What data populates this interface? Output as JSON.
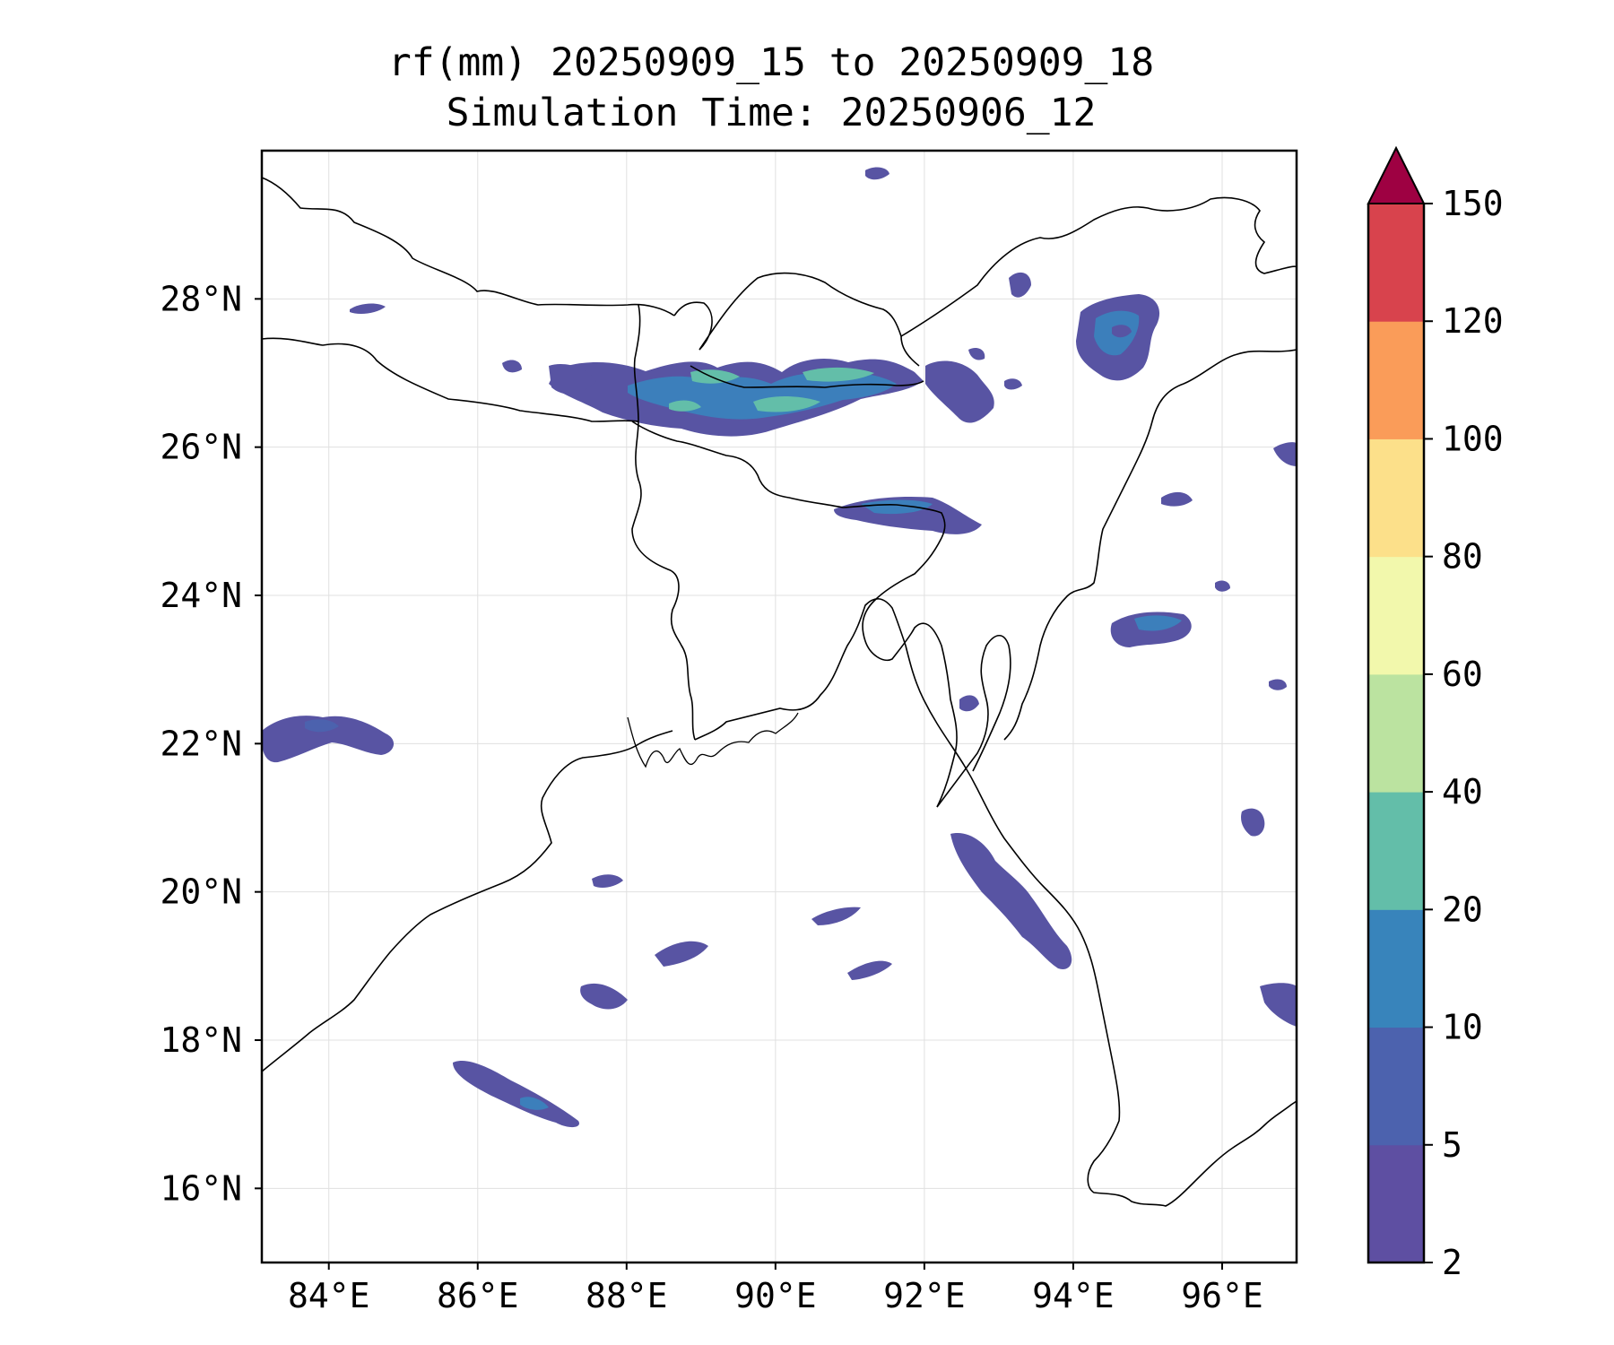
{
  "title": {
    "line1": "rf(mm) 20250909_15 to 20250909_18",
    "line2": "Simulation Time: 20250906_12"
  },
  "map": {
    "lat_ticks": [
      "28°N",
      "26°N",
      "24°N",
      "22°N",
      "20°N",
      "18°N",
      "16°N"
    ],
    "lon_ticks": [
      "84°E",
      "86°E",
      "88°E",
      "90°E",
      "92°E",
      "94°E",
      "96°E"
    ],
    "lat_values": [
      28,
      26,
      24,
      22,
      20,
      18,
      16
    ],
    "lon_values": [
      84,
      86,
      88,
      90,
      92,
      94,
      96
    ],
    "extent": {
      "lon_min": 83.1,
      "lon_max": 97.0,
      "lat_min": 15.0,
      "lat_max": 30.0
    }
  },
  "colorbar": {
    "levels": [
      "2",
      "5",
      "10",
      "20",
      "40",
      "60",
      "80",
      "100",
      "120",
      "150"
    ],
    "colors": [
      "#5e4fa2",
      "#4c62ae",
      "#3884bb",
      "#63bea9",
      "#bbe3a0",
      "#f2f8ac",
      "#fce08a",
      "#fa9c59",
      "#d8434d"
    ],
    "extend_color": "#9e0142"
  },
  "colors": {
    "rain_light": "#5854a3",
    "rain_mid": "#3c7fbb",
    "rain_high": "#63bea9",
    "rain_highest": "#9fd8a4",
    "boundary": "#000000",
    "grid": "#e0e0e0"
  }
}
